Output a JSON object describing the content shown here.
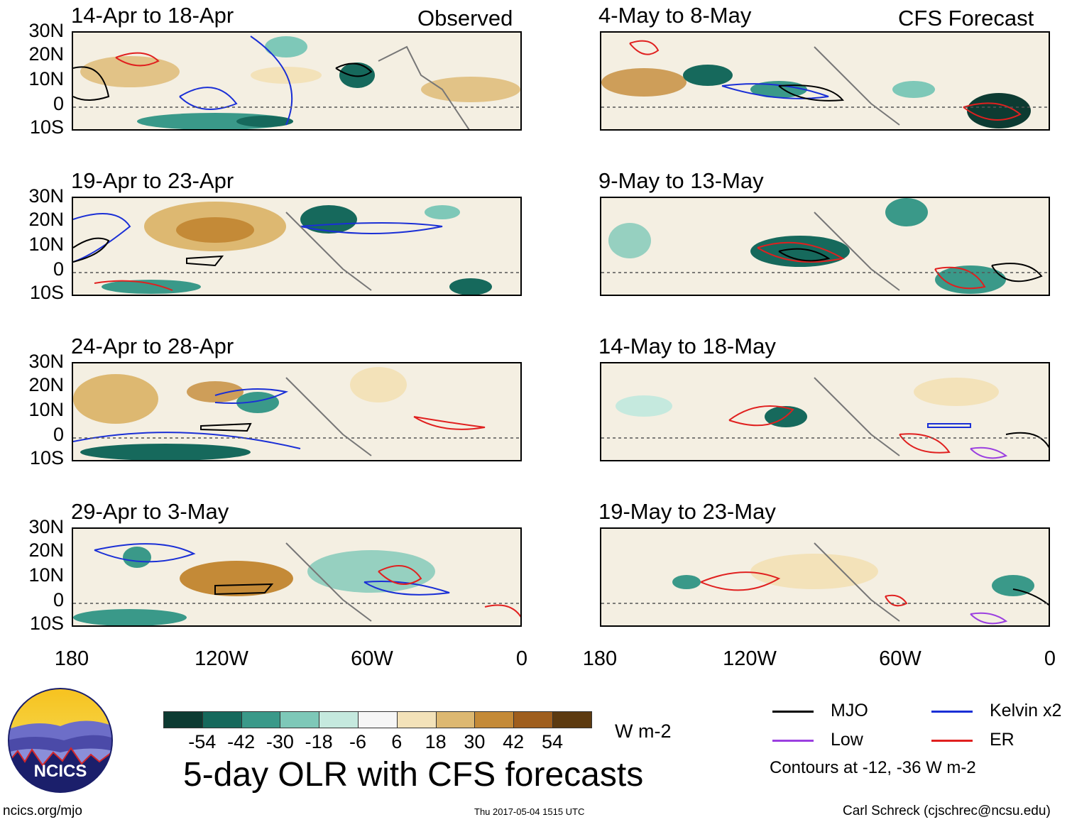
{
  "panels_observed": [
    {
      "title": "14-Apr to 18-Apr",
      "corner": "Observed"
    },
    {
      "title": "19-Apr to 23-Apr"
    },
    {
      "title": "24-Apr to 28-Apr"
    },
    {
      "title": "29-Apr to 3-May"
    }
  ],
  "panels_forecast": [
    {
      "title": "4-May to 8-May",
      "corner": "CFS Forecast"
    },
    {
      "title": "9-May to 13-May"
    },
    {
      "title": "14-May to 18-May"
    },
    {
      "title": "19-May to 23-May"
    }
  ],
  "lat_labels": [
    "30N",
    "20N",
    "10N",
    "0",
    "10S"
  ],
  "lon_labels": [
    "180",
    "120W",
    "60W",
    "0"
  ],
  "colorbar": {
    "colors": [
      "#0d3b32",
      "#16695c",
      "#3a9989",
      "#7ec8b8",
      "#c5e9de",
      "#f6f6f6",
      "#f3e2b9",
      "#ddb871",
      "#c48a37",
      "#9f5e1d",
      "#5c3a10"
    ],
    "labels": [
      "-54",
      "-42",
      "-30",
      "-18",
      "-6",
      "6",
      "18",
      "30",
      "42",
      "54"
    ],
    "units": "W m-2"
  },
  "legend": {
    "items": [
      {
        "label": "MJO",
        "color": "#000000"
      },
      {
        "label": "Kelvin x2",
        "color": "#1a2fd6"
      },
      {
        "label": "Low",
        "color": "#9b3fe0"
      },
      {
        "label": "ER",
        "color": "#e0201f"
      }
    ],
    "note": "Contours at -12, -36 W m-2"
  },
  "main_title": "5-day OLR with CFS forecasts",
  "logo_text": "NCICS",
  "footer": {
    "url": "ncics.org/mjo",
    "timestamp": "Thu 2017-05-04 1515 UTC",
    "author": "Carl Schreck (cjschrec@ncsu.edu)"
  }
}
